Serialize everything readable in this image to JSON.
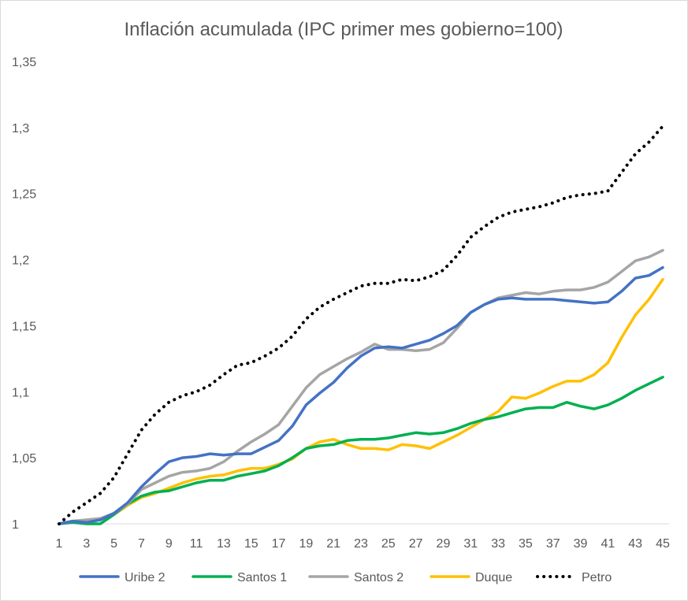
{
  "chart_data": {
    "type": "line",
    "title": "Inflación acumulada (IPC primer mes gobierno=100)",
    "xlabel": "",
    "ylabel": "",
    "x": [
      1,
      2,
      3,
      4,
      5,
      6,
      7,
      8,
      9,
      10,
      11,
      12,
      13,
      14,
      15,
      16,
      17,
      18,
      19,
      20,
      21,
      22,
      23,
      24,
      25,
      26,
      27,
      28,
      29,
      30,
      31,
      32,
      33,
      34,
      35,
      36,
      37,
      38,
      39,
      40,
      41,
      42,
      43,
      44,
      45
    ],
    "x_tick_labels": [
      "1",
      "3",
      "5",
      "7",
      "9",
      "11",
      "13",
      "15",
      "17",
      "19",
      "21",
      "23",
      "25",
      "27",
      "29",
      "31",
      "33",
      "35",
      "37",
      "39",
      "41",
      "43",
      "45"
    ],
    "y_tick_labels": [
      "1",
      "1,05",
      "1,1",
      "1,15",
      "1,2",
      "1,25",
      "1,3",
      "1,35"
    ],
    "ylim": [
      1,
      1.35
    ],
    "grid": false,
    "legend_position": "bottom",
    "series": [
      {
        "name": "Uribe 2",
        "color": "#4472c4",
        "style": "solid",
        "values": [
          1.0,
          1.002,
          1.001,
          1.003,
          1.008,
          1.016,
          1.028,
          1.038,
          1.047,
          1.05,
          1.051,
          1.053,
          1.052,
          1.053,
          1.053,
          1.058,
          1.063,
          1.074,
          1.09,
          1.099,
          1.107,
          1.118,
          1.127,
          1.133,
          1.134,
          1.133,
          1.136,
          1.139,
          1.144,
          1.15,
          1.16,
          1.166,
          1.17,
          1.171,
          1.17,
          1.17,
          1.17,
          1.169,
          1.168,
          1.167,
          1.168,
          1.176,
          1.186,
          1.188,
          1.194
        ]
      },
      {
        "name": "Santos 1",
        "color": "#00b050",
        "style": "solid",
        "values": [
          1.0,
          1.001,
          1.0,
          1.0,
          1.007,
          1.015,
          1.021,
          1.024,
          1.025,
          1.028,
          1.031,
          1.033,
          1.033,
          1.036,
          1.038,
          1.04,
          1.044,
          1.05,
          1.057,
          1.059,
          1.06,
          1.063,
          1.064,
          1.064,
          1.065,
          1.067,
          1.069,
          1.068,
          1.069,
          1.072,
          1.076,
          1.079,
          1.081,
          1.084,
          1.087,
          1.088,
          1.088,
          1.092,
          1.089,
          1.087,
          1.09,
          1.095,
          1.101,
          1.106,
          1.111
        ]
      },
      {
        "name": "Santos 2",
        "color": "#a5a5a5",
        "style": "solid",
        "values": [
          1.0,
          1.002,
          1.003,
          1.004,
          1.008,
          1.015,
          1.026,
          1.031,
          1.036,
          1.039,
          1.04,
          1.042,
          1.047,
          1.055,
          1.062,
          1.068,
          1.075,
          1.089,
          1.103,
          1.113,
          1.119,
          1.125,
          1.13,
          1.136,
          1.132,
          1.132,
          1.131,
          1.132,
          1.137,
          1.148,
          1.16,
          1.166,
          1.171,
          1.173,
          1.175,
          1.174,
          1.176,
          1.177,
          1.177,
          1.179,
          1.183,
          1.191,
          1.199,
          1.202,
          1.207
        ]
      },
      {
        "name": "Duque",
        "color": "#ffc000",
        "style": "solid",
        "values": [
          1.0,
          1.002,
          1.003,
          1.004,
          1.007,
          1.014,
          1.02,
          1.023,
          1.027,
          1.031,
          1.034,
          1.036,
          1.037,
          1.04,
          1.042,
          1.042,
          1.045,
          1.049,
          1.057,
          1.062,
          1.064,
          1.06,
          1.057,
          1.057,
          1.056,
          1.06,
          1.059,
          1.057,
          1.062,
          1.067,
          1.073,
          1.079,
          1.085,
          1.096,
          1.095,
          1.099,
          1.104,
          1.108,
          1.108,
          1.113,
          1.122,
          1.141,
          1.158,
          1.17,
          1.185
        ]
      },
      {
        "name": "Petro",
        "color": "#000000",
        "style": "dotted",
        "values": [
          1.0,
          1.009,
          1.016,
          1.023,
          1.035,
          1.053,
          1.071,
          1.083,
          1.092,
          1.097,
          1.1,
          1.105,
          1.113,
          1.12,
          1.122,
          1.127,
          1.133,
          1.142,
          1.155,
          1.164,
          1.17,
          1.175,
          1.18,
          1.182,
          1.182,
          1.185,
          1.184,
          1.187,
          1.192,
          1.203,
          1.217,
          1.225,
          1.232,
          1.236,
          1.238,
          1.24,
          1.243,
          1.247,
          1.249,
          1.25,
          1.252,
          1.266,
          1.28,
          1.289,
          1.301
        ]
      }
    ]
  }
}
